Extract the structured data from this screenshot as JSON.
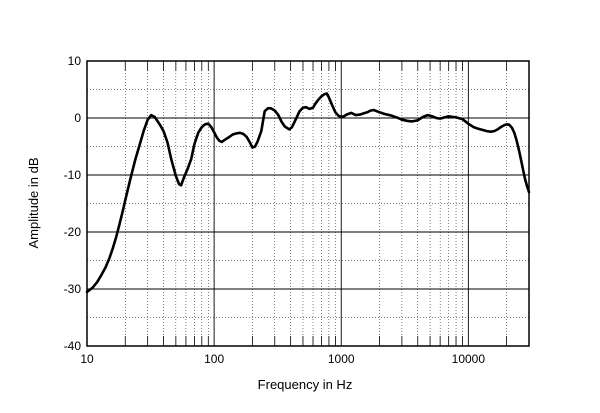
{
  "chart_data": {
    "type": "line",
    "title": "",
    "xlabel": "Frequency  in Hz",
    "ylabel": "Amplitude in dB",
    "x_scale": "log",
    "xlim": [
      10,
      30000
    ],
    "ylim": [
      -40,
      10
    ],
    "grid": true,
    "legend": "none",
    "x_ticks": [
      {
        "value": 10,
        "label": "10"
      },
      {
        "value": 100,
        "label": "100"
      },
      {
        "value": 1000,
        "label": "1000"
      },
      {
        "value": 10000,
        "label": "10000"
      }
    ],
    "y_ticks": [
      {
        "value": 10,
        "label": "10"
      },
      {
        "value": 0,
        "label": "0"
      },
      {
        "value": -10,
        "label": "-10"
      },
      {
        "value": -20,
        "label": "-20"
      },
      {
        "value": -30,
        "label": "-30"
      },
      {
        "value": -40,
        "label": "-40"
      }
    ],
    "series": [
      {
        "color": "#000000",
        "points": [
          [
            10,
            -30.5
          ],
          [
            11,
            -29.8
          ],
          [
            12,
            -28.8
          ],
          [
            13,
            -27.5
          ],
          [
            14,
            -26.2
          ],
          [
            15,
            -24.6
          ],
          [
            16,
            -22.8
          ],
          [
            17,
            -20.8
          ],
          [
            18,
            -18.7
          ],
          [
            19,
            -16.6
          ],
          [
            20,
            -14.4
          ],
          [
            22,
            -10.6
          ],
          [
            24,
            -7.3
          ],
          [
            26,
            -4.6
          ],
          [
            28,
            -2.2
          ],
          [
            30,
            -0.3
          ],
          [
            32,
            0.5
          ],
          [
            34,
            0.2
          ],
          [
            36,
            -0.6
          ],
          [
            38,
            -1.4
          ],
          [
            40,
            -2.3
          ],
          [
            43,
            -4.3
          ],
          [
            46,
            -7.2
          ],
          [
            50,
            -10.2
          ],
          [
            53,
            -11.6
          ],
          [
            55,
            -11.8
          ],
          [
            58,
            -10.4
          ],
          [
            62,
            -8.9
          ],
          [
            66,
            -7.2
          ],
          [
            70,
            -4.6
          ],
          [
            75,
            -2.6
          ],
          [
            80,
            -1.6
          ],
          [
            85,
            -1.1
          ],
          [
            90,
            -1.0
          ],
          [
            95,
            -1.6
          ],
          [
            100,
            -2.5
          ],
          [
            105,
            -3.4
          ],
          [
            110,
            -4.0
          ],
          [
            115,
            -4.2
          ],
          [
            120,
            -3.9
          ],
          [
            130,
            -3.4
          ],
          [
            140,
            -2.9
          ],
          [
            150,
            -2.7
          ],
          [
            160,
            -2.6
          ],
          [
            170,
            -2.8
          ],
          [
            180,
            -3.3
          ],
          [
            190,
            -4.2
          ],
          [
            200,
            -5.2
          ],
          [
            210,
            -5.0
          ],
          [
            220,
            -4.1
          ],
          [
            235,
            -2.3
          ],
          [
            250,
            1.2
          ],
          [
            265,
            1.7
          ],
          [
            280,
            1.7
          ],
          [
            300,
            1.3
          ],
          [
            320,
            0.5
          ],
          [
            340,
            -0.7
          ],
          [
            360,
            -1.5
          ],
          [
            390,
            -2.0
          ],
          [
            410,
            -1.6
          ],
          [
            440,
            -0.2
          ],
          [
            470,
            1.2
          ],
          [
            500,
            1.8
          ],
          [
            530,
            1.9
          ],
          [
            560,
            1.6
          ],
          [
            600,
            1.8
          ],
          [
            630,
            2.6
          ],
          [
            660,
            3.2
          ],
          [
            700,
            3.8
          ],
          [
            740,
            4.2
          ],
          [
            770,
            4.3
          ],
          [
            800,
            3.6
          ],
          [
            850,
            2.2
          ],
          [
            900,
            1.0
          ],
          [
            950,
            0.4
          ],
          [
            1000,
            0.2
          ],
          [
            1050,
            0.3
          ],
          [
            1100,
            0.6
          ],
          [
            1200,
            0.9
          ],
          [
            1300,
            0.5
          ],
          [
            1400,
            0.6
          ],
          [
            1500,
            0.8
          ],
          [
            1600,
            1.0
          ],
          [
            1700,
            1.3
          ],
          [
            1800,
            1.4
          ],
          [
            1900,
            1.2
          ],
          [
            2000,
            1.0
          ],
          [
            2200,
            0.7
          ],
          [
            2500,
            0.4
          ],
          [
            2800,
            0.0
          ],
          [
            3000,
            -0.3
          ],
          [
            3300,
            -0.5
          ],
          [
            3600,
            -0.6
          ],
          [
            4000,
            -0.4
          ],
          [
            4400,
            0.2
          ],
          [
            4800,
            0.5
          ],
          [
            5200,
            0.3
          ],
          [
            5600,
            0.0
          ],
          [
            6000,
            -0.1
          ],
          [
            6500,
            0.1
          ],
          [
            7000,
            0.3
          ],
          [
            7500,
            0.2
          ],
          [
            8000,
            0.1
          ],
          [
            9000,
            -0.2
          ],
          [
            10000,
            -1.0
          ],
          [
            11000,
            -1.6
          ],
          [
            12000,
            -1.9
          ],
          [
            13000,
            -2.1
          ],
          [
            14000,
            -2.3
          ],
          [
            15000,
            -2.4
          ],
          [
            16000,
            -2.3
          ],
          [
            17000,
            -2.0
          ],
          [
            18000,
            -1.6
          ],
          [
            19000,
            -1.3
          ],
          [
            20000,
            -1.1
          ],
          [
            21000,
            -1.2
          ],
          [
            22000,
            -1.7
          ],
          [
            23000,
            -2.6
          ],
          [
            24000,
            -4.0
          ],
          [
            25000,
            -5.6
          ],
          [
            26000,
            -7.4
          ],
          [
            27000,
            -9.2
          ],
          [
            28000,
            -10.8
          ],
          [
            29000,
            -12.0
          ],
          [
            30000,
            -13.0
          ]
        ]
      }
    ]
  }
}
